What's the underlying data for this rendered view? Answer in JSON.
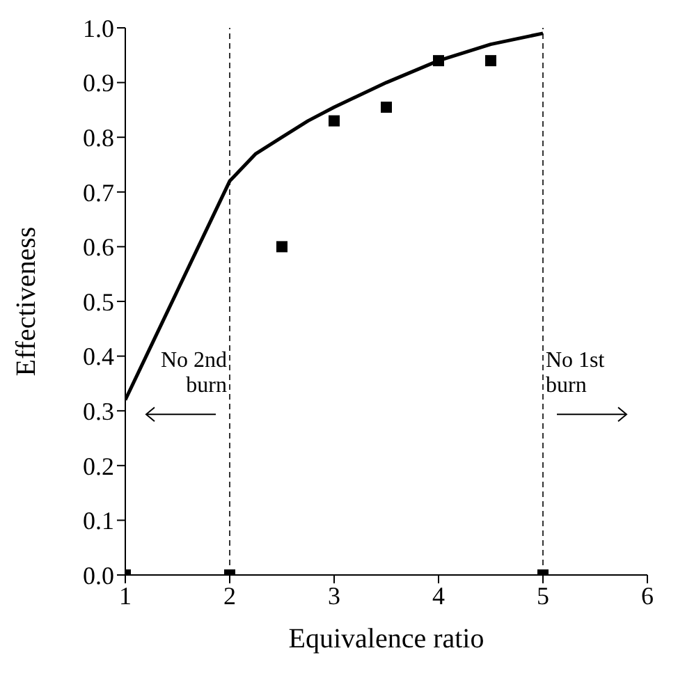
{
  "chart_data": {
    "type": "line",
    "xlabel": "Equivalence ratio",
    "ylabel": "Effectiveness",
    "xlim": [
      1,
      6
    ],
    "xticks": [
      1,
      2,
      3,
      4,
      5,
      6
    ],
    "ylim": [
      0,
      1
    ],
    "yticks": [
      {
        "value": 0,
        "label": "0.0"
      },
      0.1,
      0.2,
      0.3,
      0.4,
      0.5,
      0.6,
      0.7,
      0.8,
      0.9,
      {
        "value": 1,
        "label": "1.0"
      }
    ],
    "grid": false,
    "series": [
      {
        "color": "#000000",
        "marker": "none",
        "line_style": "solid",
        "x": [
          1,
          1.25,
          1.5,
          1.75,
          2,
          2.25,
          2.5,
          2.75,
          3,
          3.5,
          4,
          4.5,
          5
        ],
        "values": [
          0.32,
          0.42,
          0.52,
          0.62,
          0.72,
          0.77,
          0.8,
          0.83,
          0.855,
          0.9,
          0.94,
          0.97,
          0.99
        ]
      },
      {
        "type": "scatter",
        "color": "#000000",
        "marker": "square",
        "x": [
          1,
          2,
          2.5,
          3,
          3.5,
          4,
          4.5,
          5
        ],
        "values": [
          0,
          0,
          0.6,
          0.83,
          0.855,
          0.94,
          0.94,
          0
        ]
      }
    ],
    "ref_lines": [
      {
        "axis": "x",
        "value": 2,
        "label": "No 2nd burn",
        "line_style": "dashed",
        "color": "#000000"
      },
      {
        "axis": "x",
        "value": 5,
        "label": "No 1st burn",
        "line_style": "dashed",
        "color": "#000000"
      }
    ]
  }
}
